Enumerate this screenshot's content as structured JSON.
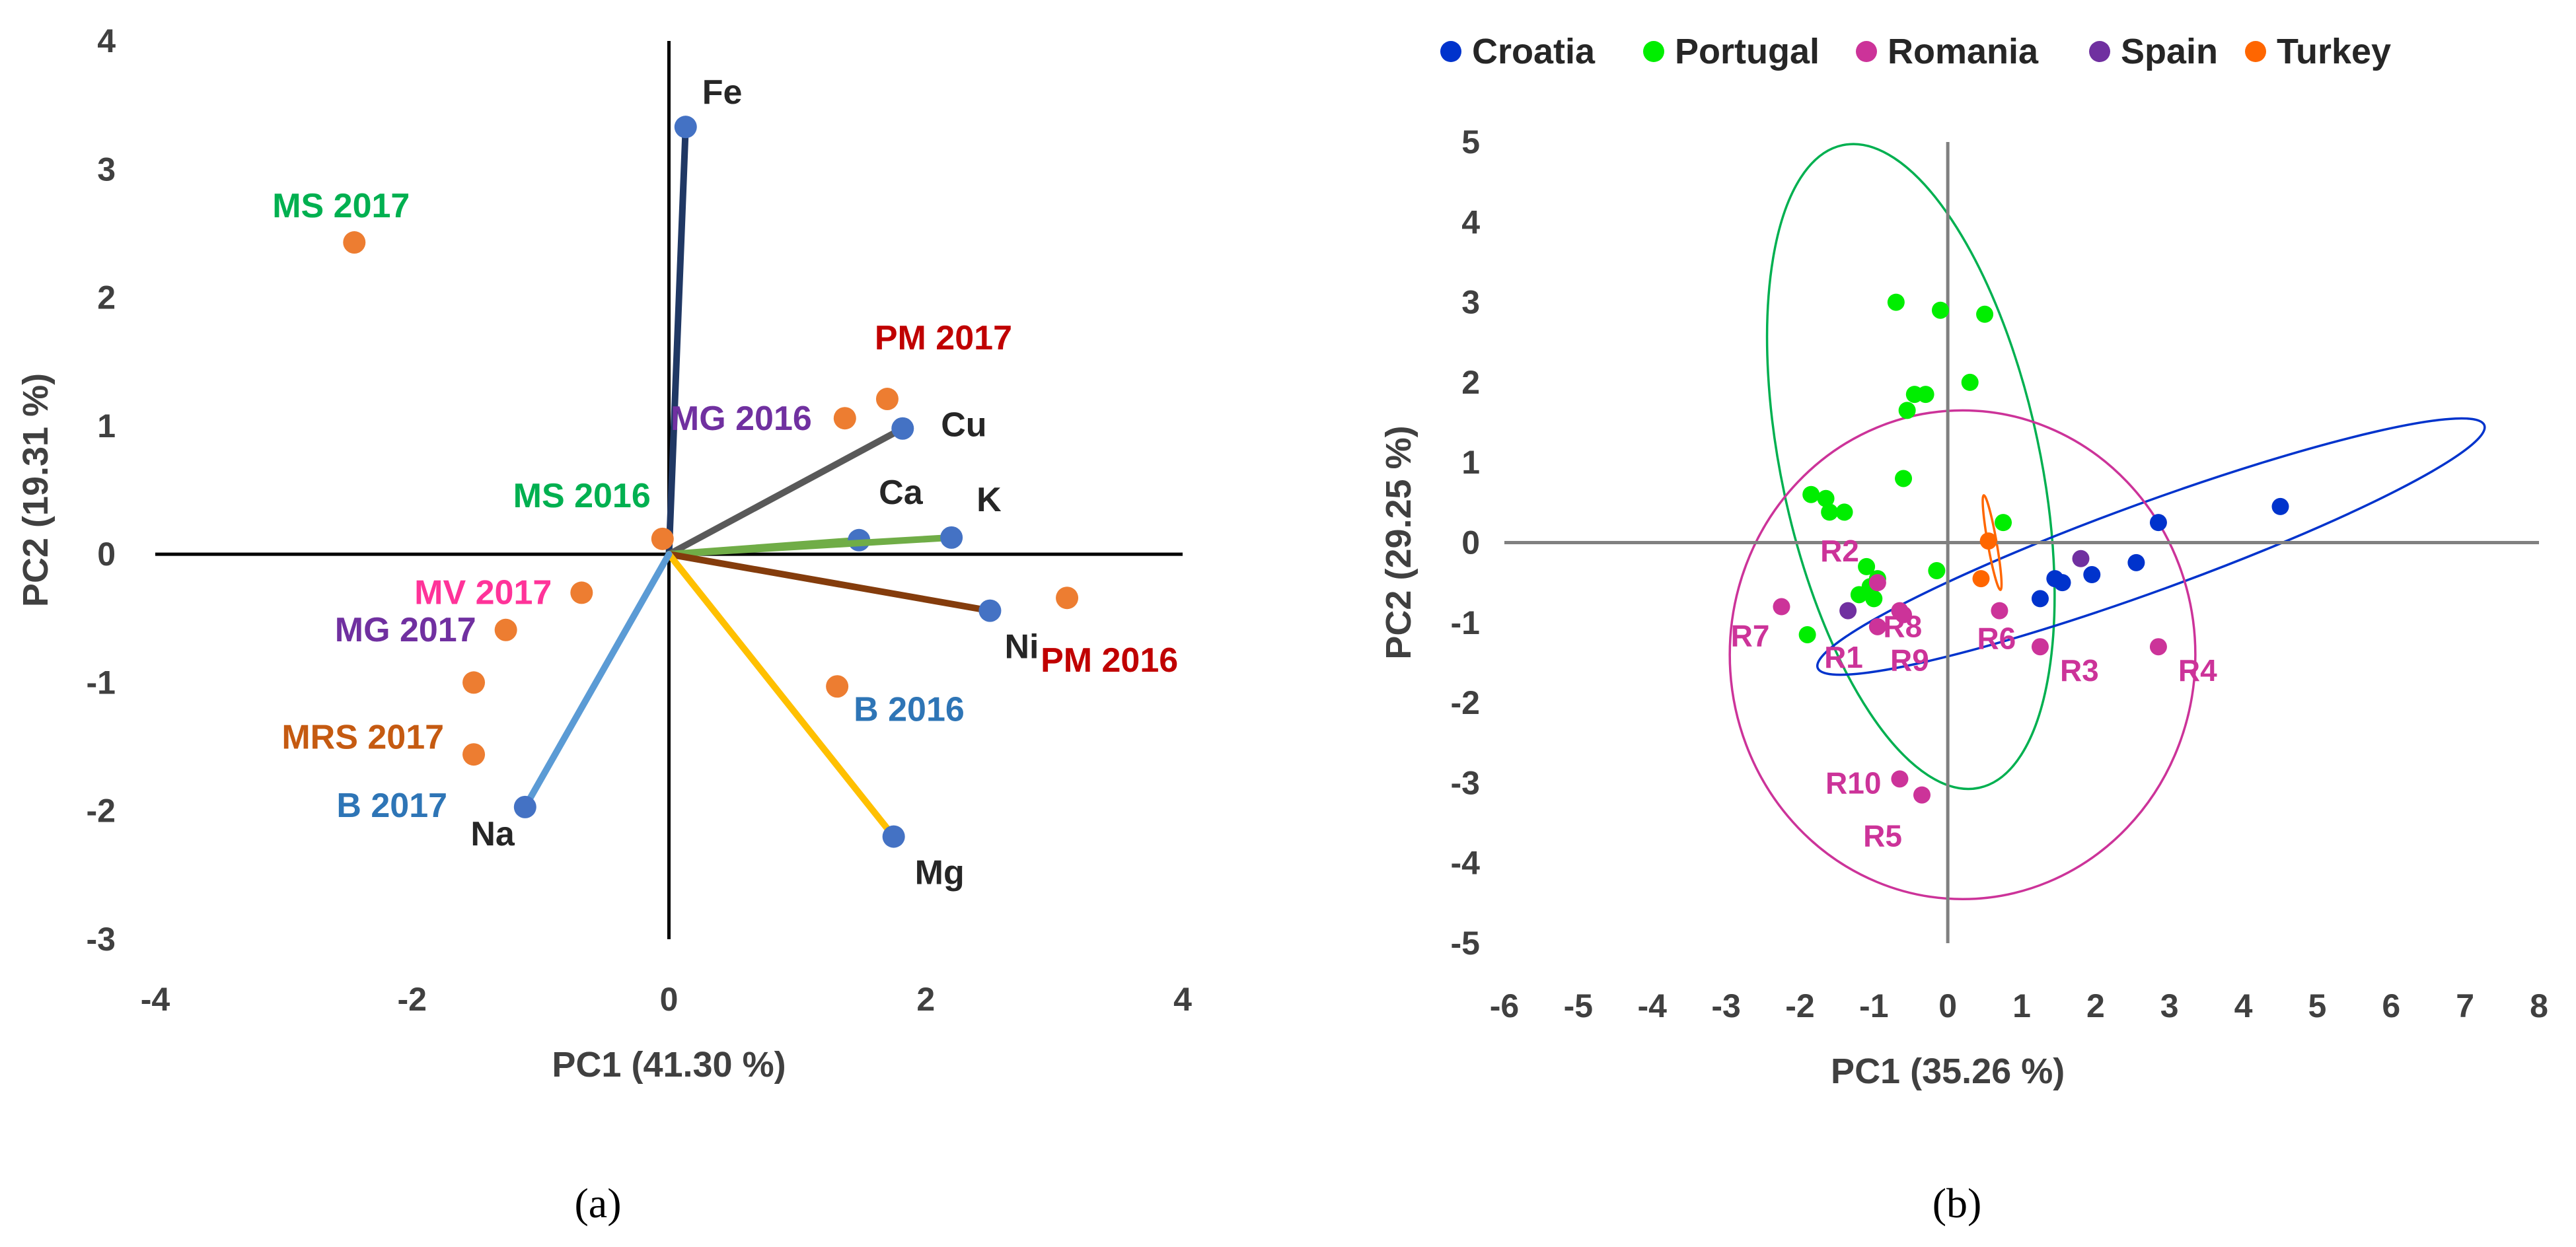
{
  "chart_data": [
    {
      "type": "biplot",
      "caption": "(a)",
      "xlabel": "PC1 (41.30 %)",
      "ylabel": "PC2 (19.31 %)",
      "xlim": [
        -4,
        4
      ],
      "ylim": [
        -3,
        4
      ],
      "xticks": [
        -4,
        -2,
        0,
        2,
        4
      ],
      "yticks": [
        -3,
        -2,
        -1,
        0,
        1,
        2,
        3,
        4
      ],
      "loadings": [
        {
          "name": "Fe",
          "x": 0.13,
          "y": 3.33,
          "color": "#203864"
        },
        {
          "name": "Cu",
          "x": 1.82,
          "y": 0.98,
          "color": "#595959"
        },
        {
          "name": "Ca",
          "x": 1.48,
          "y": 0.11,
          "color": "#70AD47"
        },
        {
          "name": "K",
          "x": 2.2,
          "y": 0.13,
          "color": "#70AD47"
        },
        {
          "name": "Ni",
          "x": 2.5,
          "y": -0.44,
          "color": "#843C0C"
        },
        {
          "name": "Mg",
          "x": 1.75,
          "y": -2.2,
          "color": "#FFC000"
        },
        {
          "name": "Na",
          "x": -1.12,
          "y": -1.97,
          "color": "#5B9BD5"
        }
      ],
      "scores": [
        {
          "name": "MS 2017",
          "x": -2.45,
          "y": 2.43,
          "color": "#00B050"
        },
        {
          "name": "PM 2017",
          "x": 1.7,
          "y": 1.21,
          "color": "#C00000"
        },
        {
          "name": "MG 2016",
          "x": 1.37,
          "y": 1.06,
          "color": "#7030A0"
        },
        {
          "name": "MS 2016",
          "x": -0.05,
          "y": 0.12,
          "color": "#00B050"
        },
        {
          "name": "MV 2017",
          "x": -0.68,
          "y": -0.3,
          "color": "#FF3399"
        },
        {
          "name": "MG 2017",
          "x": -1.27,
          "y": -0.59,
          "color": "#7030A0"
        },
        {
          "name": "MRS 2017",
          "x": -1.52,
          "y": -1.0,
          "color": "#C55A11"
        },
        {
          "name": "B 2017",
          "x": -1.52,
          "y": -1.56,
          "color": "#2E75B6"
        },
        {
          "name": "B 2016",
          "x": 1.31,
          "y": -1.03,
          "color": "#2E75B6"
        },
        {
          "name": "PM 2016",
          "x": 3.1,
          "y": -0.34,
          "color": "#C00000"
        }
      ],
      "score_marker_color": "#ED7D31",
      "loading_marker_color": "#4472C4"
    },
    {
      "type": "scatter",
      "caption": "(b)",
      "xlabel": "PC1 (35.26 %)",
      "ylabel": "PC2 (29.25 %)",
      "xlim": [
        -6,
        8
      ],
      "ylim": [
        -5,
        5
      ],
      "xticks": [
        -6,
        -5,
        -4,
        -3,
        -2,
        -1,
        0,
        1,
        2,
        3,
        4,
        5,
        6,
        7,
        8
      ],
      "yticks": [
        -5,
        -4,
        -3,
        -2,
        -1,
        0,
        1,
        2,
        3,
        4,
        5
      ],
      "legend": [
        {
          "name": "Croatia",
          "color": "#0033CC"
        },
        {
          "name": "Portugal",
          "color": "#00EE00"
        },
        {
          "name": "Romania",
          "color": "#CC3399"
        },
        {
          "name": "Spain",
          "color": "#7030A0"
        },
        {
          "name": "Turkey",
          "color": "#FF6600"
        }
      ],
      "series": [
        {
          "name": "Croatia",
          "color": "#0033CC",
          "points": [
            [
              4.5,
              0.45
            ],
            [
              2.85,
              0.25
            ],
            [
              2.55,
              -0.25
            ],
            [
              1.95,
              -0.4
            ],
            [
              1.55,
              -0.5
            ],
            [
              1.45,
              -0.45
            ],
            [
              1.25,
              -0.7
            ]
          ]
        },
        {
          "name": "Portugal",
          "color": "#00EE00",
          "points": [
            [
              -0.7,
              3.0
            ],
            [
              -0.1,
              2.9
            ],
            [
              0.5,
              2.85
            ],
            [
              0.3,
              2.0
            ],
            [
              -0.3,
              1.85
            ],
            [
              -0.45,
              1.85
            ],
            [
              -0.55,
              1.65
            ],
            [
              -0.6,
              0.8
            ],
            [
              -1.85,
              0.6
            ],
            [
              -1.65,
              0.55
            ],
            [
              -1.6,
              0.38
            ],
            [
              -1.4,
              0.38
            ],
            [
              0.75,
              0.25
            ],
            [
              -0.15,
              -0.35
            ],
            [
              -1.1,
              -0.3
            ],
            [
              -0.95,
              -0.45
            ],
            [
              -1.05,
              -0.55
            ],
            [
              -1.2,
              -0.65
            ],
            [
              -1.0,
              -0.7
            ],
            [
              -1.9,
              -1.15
            ]
          ]
        },
        {
          "name": "Romania",
          "color": "#CC3399",
          "labeled": true,
          "points": [
            [
              -0.95,
              -1.05,
              "R1"
            ],
            [
              -0.95,
              -0.5,
              "R2"
            ],
            [
              1.25,
              -1.3,
              "R3"
            ],
            [
              2.85,
              -1.3,
              "R4"
            ],
            [
              -0.35,
              -3.15,
              "R5"
            ],
            [
              0.7,
              -0.85,
              "R6"
            ],
            [
              -2.25,
              -0.8,
              "R7"
            ],
            [
              -0.65,
              -0.85,
              "R8"
            ],
            [
              -0.6,
              -0.9,
              "R9"
            ],
            [
              -0.65,
              -2.95,
              "R10"
            ]
          ]
        },
        {
          "name": "Spain",
          "color": "#7030A0",
          "points": [
            [
              -1.35,
              -0.85
            ],
            [
              1.8,
              -0.2
            ]
          ]
        },
        {
          "name": "Turkey",
          "color": "#FF6600",
          "points": [
            [
              0.55,
              0.02
            ],
            [
              0.45,
              -0.45
            ]
          ]
        }
      ],
      "ellipses": [
        {
          "group": "Portugal",
          "color": "#00B050",
          "center": [
            -0.5,
            0.95
          ],
          "semi_axes": [
            1.75,
            4.1
          ],
          "rotation_deg": 12
        },
        {
          "group": "Croatia",
          "color": "#0033CC",
          "center": [
            2.75,
            -0.05
          ],
          "semi_axes": [
            4.8,
            0.55
          ],
          "rotation_deg": 20
        },
        {
          "group": "Romania",
          "color": "#CC3399",
          "center": [
            0.2,
            -1.4
          ],
          "semi_axes": [
            3.15,
            3.05
          ],
          "rotation_deg": 0
        },
        {
          "group": "Turkey",
          "color": "#FF6600",
          "center": [
            0.6,
            0.0
          ],
          "semi_axes": [
            0.06,
            0.6
          ],
          "rotation_deg": 10
        }
      ]
    }
  ]
}
